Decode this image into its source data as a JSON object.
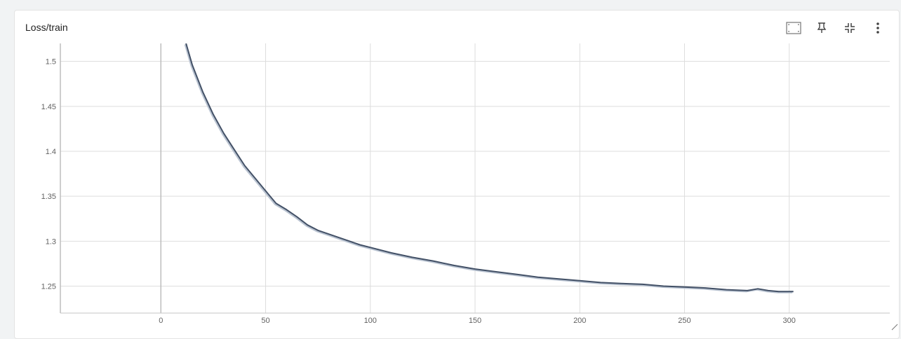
{
  "card": {
    "title": "Loss/train"
  },
  "toolbar": {
    "icons": [
      "fit-domain-icon",
      "pin-icon",
      "collapse-icon",
      "more-vert-icon"
    ]
  },
  "colors": {
    "line": "#425066",
    "raw_line": "#b9c3d1",
    "grid": "#dddddd",
    "axis": "#bdbdbd"
  },
  "chart_data": {
    "type": "line",
    "title": "Loss/train",
    "xlabel": "",
    "ylabel": "",
    "xlim": [
      -48,
      348
    ],
    "ylim": [
      1.22,
      1.52
    ],
    "x_ticks": [
      0,
      50,
      100,
      150,
      200,
      250,
      300
    ],
    "y_ticks": [
      1.25,
      1.3,
      1.35,
      1.4,
      1.45,
      1.5
    ],
    "y_tick_labels": [
      "1.25",
      "1.3",
      "1.35",
      "1.4",
      "1.45",
      "1.5"
    ],
    "grid": true,
    "series": [
      {
        "x": [
          12,
          15,
          20,
          25,
          30,
          35,
          40,
          45,
          50,
          55,
          60,
          65,
          70,
          75,
          80,
          85,
          90,
          95,
          100,
          110,
          120,
          130,
          140,
          150,
          160,
          170,
          180,
          190,
          200,
          210,
          220,
          230,
          240,
          250,
          260,
          270,
          280,
          285,
          290,
          295,
          302
        ],
        "values": [
          1.52,
          1.496,
          1.466,
          1.441,
          1.42,
          1.402,
          1.384,
          1.37,
          1.356,
          1.342,
          1.335,
          1.327,
          1.318,
          1.312,
          1.308,
          1.304,
          1.3,
          1.296,
          1.293,
          1.287,
          1.282,
          1.278,
          1.273,
          1.269,
          1.266,
          1.263,
          1.26,
          1.258,
          1.256,
          1.254,
          1.253,
          1.252,
          1.25,
          1.249,
          1.248,
          1.246,
          1.245,
          1.247,
          1.245,
          1.244,
          1.244
        ]
      }
    ]
  }
}
